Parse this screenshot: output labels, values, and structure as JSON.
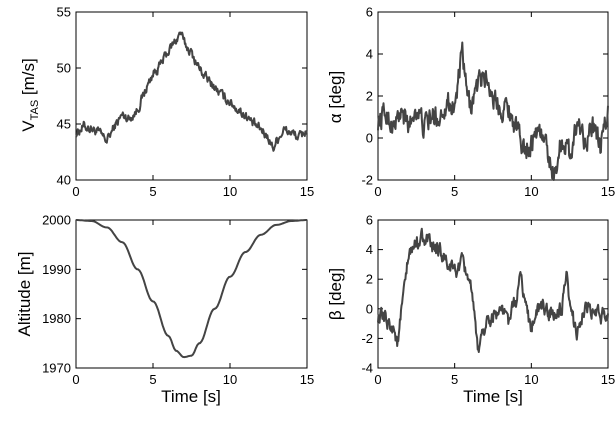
{
  "chart_data": [
    {
      "type": "line",
      "id": "vtas",
      "ylabel_main": "V",
      "ylabel_sub": "TAS",
      "ylabel_unit": " [m/s]",
      "xlabel": "",
      "xlim": [
        0,
        15
      ],
      "ylim": [
        40,
        55
      ],
      "xticks": [
        0,
        5,
        10,
        15
      ],
      "yticks": [
        40,
        45,
        50,
        55
      ],
      "grid": false,
      "series": [
        {
          "noise": 0.35,
          "points": [
            [
              0,
              44.2
            ],
            [
              0.5,
              44.8
            ],
            [
              1,
              44.6
            ],
            [
              1.5,
              44.2
            ],
            [
              2,
              43.5
            ],
            [
              2.5,
              44.8
            ],
            [
              3,
              45.8
            ],
            [
              3.5,
              45.5
            ],
            [
              4,
              46.3
            ],
            [
              4.5,
              48
            ],
            [
              5,
              49.5
            ],
            [
              5.5,
              50.3
            ],
            [
              6,
              51.5
            ],
            [
              6.5,
              52.5
            ],
            [
              6.8,
              53.2
            ],
            [
              7,
              52.3
            ],
            [
              7.5,
              51.3
            ],
            [
              8,
              50
            ],
            [
              8.5,
              49
            ],
            [
              9,
              48.3
            ],
            [
              9.5,
              47.5
            ],
            [
              10,
              47
            ],
            [
              10.5,
              46.3
            ],
            [
              11,
              45.8
            ],
            [
              11.5,
              45
            ],
            [
              12,
              44.5
            ],
            [
              12.5,
              43.8
            ],
            [
              12.8,
              42.8
            ],
            [
              13,
              43.5
            ],
            [
              13.5,
              44.5
            ],
            [
              14,
              44.2
            ],
            [
              14.5,
              43.8
            ],
            [
              15,
              44.5
            ]
          ]
        }
      ]
    },
    {
      "type": "line",
      "id": "alpha",
      "ylabel": "α [deg]",
      "xlabel": "",
      "xlim": [
        0,
        15
      ],
      "ylim": [
        -2,
        6
      ],
      "xticks": [
        0,
        5,
        10,
        15
      ],
      "yticks": [
        -2,
        0,
        2,
        4,
        6
      ],
      "grid": false,
      "series": [
        {
          "noise": 0.45,
          "points": [
            [
              0,
              0.8
            ],
            [
              0.5,
              1.2
            ],
            [
              1,
              0.5
            ],
            [
              1.5,
              1.2
            ],
            [
              2,
              0.5
            ],
            [
              2.5,
              1.5
            ],
            [
              3,
              0.5
            ],
            [
              3.5,
              1
            ],
            [
              4,
              1
            ],
            [
              4.5,
              1.8
            ],
            [
              5,
              1.5
            ],
            [
              5.3,
              3
            ],
            [
              5.5,
              4
            ],
            [
              5.8,
              2
            ],
            [
              6,
              1.5
            ],
            [
              6.5,
              2.5
            ],
            [
              7,
              3
            ],
            [
              7.5,
              2
            ],
            [
              8,
              1.5
            ],
            [
              8.5,
              1.5
            ],
            [
              9,
              0.5
            ],
            [
              9.5,
              -0.5
            ],
            [
              10,
              -0.2
            ],
            [
              10.5,
              0.5
            ],
            [
              11,
              -0.5
            ],
            [
              11.5,
              -1.8
            ],
            [
              12,
              0
            ],
            [
              12.5,
              -0.8
            ],
            [
              13,
              0.8
            ],
            [
              13.5,
              0
            ],
            [
              14,
              0.5
            ],
            [
              14.5,
              -0.5
            ],
            [
              15,
              1.2
            ]
          ]
        }
      ]
    },
    {
      "type": "line",
      "id": "altitude",
      "ylabel": "Altitude [m]",
      "xlabel": "Time [s]",
      "xlim": [
        0,
        15
      ],
      "ylim": [
        1970,
        2000
      ],
      "xticks": [
        0,
        5,
        10,
        15
      ],
      "yticks": [
        1970,
        1980,
        1990,
        2000
      ],
      "grid": false,
      "series": [
        {
          "noise": 0,
          "points": [
            [
              0,
              2000
            ],
            [
              1,
              1999.8
            ],
            [
              2,
              1998.5
            ],
            [
              3,
              1995.5
            ],
            [
              4,
              1990
            ],
            [
              5,
              1983.5
            ],
            [
              6,
              1976.5
            ],
            [
              6.5,
              1973.5
            ],
            [
              7,
              1972.2
            ],
            [
              7.5,
              1972.5
            ],
            [
              8,
              1975
            ],
            [
              9,
              1982
            ],
            [
              10,
              1988.5
            ],
            [
              11,
              1993.5
            ],
            [
              12,
              1997
            ],
            [
              13,
              1999
            ],
            [
              14,
              1999.8
            ],
            [
              15,
              2000
            ]
          ]
        }
      ]
    },
    {
      "type": "line",
      "id": "beta",
      "ylabel": "β [deg]",
      "xlabel": "Time [s]",
      "xlim": [
        0,
        15
      ],
      "ylim": [
        -4,
        6
      ],
      "xticks": [
        0,
        5,
        10,
        15
      ],
      "yticks": [
        -4,
        -2,
        0,
        2,
        4,
        6
      ],
      "grid": false,
      "series": [
        {
          "noise": 0.45,
          "points": [
            [
              0,
              -0.5
            ],
            [
              0.5,
              -0.8
            ],
            [
              1,
              -1.2
            ],
            [
              1.3,
              -2.5
            ],
            [
              1.5,
              -0.5
            ],
            [
              2,
              3.5
            ],
            [
              2.5,
              4.5
            ],
            [
              3,
              5
            ],
            [
              3.5,
              4
            ],
            [
              4,
              4
            ],
            [
              4.5,
              3
            ],
            [
              5,
              2.5
            ],
            [
              5.5,
              3
            ],
            [
              6,
              2
            ],
            [
              6.3,
              -1
            ],
            [
              6.5,
              -2.8
            ],
            [
              7,
              -1
            ],
            [
              7.5,
              -0.5
            ],
            [
              8,
              0
            ],
            [
              8.5,
              -0.8
            ],
            [
              9,
              0.5
            ],
            [
              9.3,
              2.2
            ],
            [
              9.6,
              0.5
            ],
            [
              10,
              -1.5
            ],
            [
              10.3,
              0
            ],
            [
              11,
              0
            ],
            [
              11.5,
              -0.5
            ],
            [
              12,
              0
            ],
            [
              12.3,
              2
            ],
            [
              12.5,
              0
            ],
            [
              13,
              -1.5
            ],
            [
              13.5,
              0
            ],
            [
              14,
              -0.3
            ],
            [
              14.5,
              -0.5
            ],
            [
              15,
              -0.3
            ]
          ]
        }
      ]
    }
  ]
}
